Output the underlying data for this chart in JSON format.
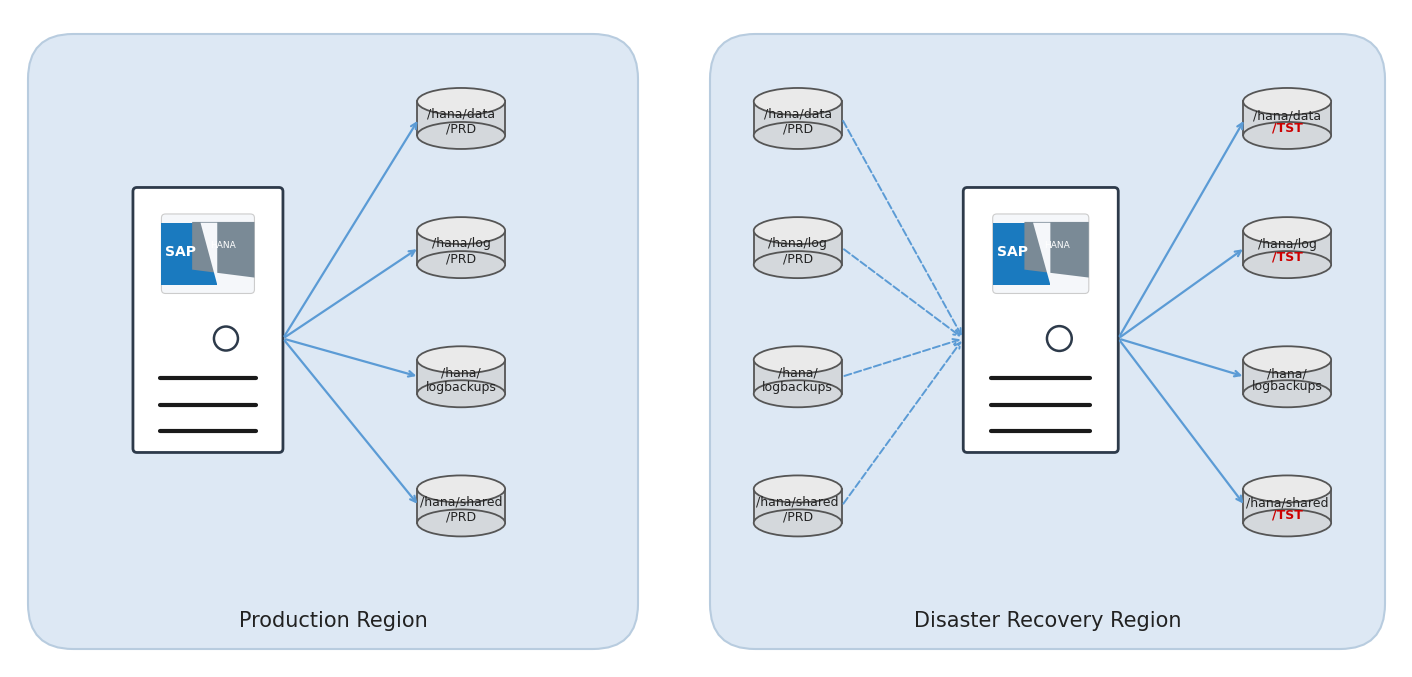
{
  "fig_bg": "#ffffff",
  "panel_bg": "#dde8f4",
  "panel_edge": "#b8ccdf",
  "server_bg": "#ffffff",
  "server_edge": "#2d3a4a",
  "logo_bg": "#f0f4f8",
  "logo_edge": "#cccccc",
  "sap_blue": "#1a7abf",
  "hana_gray": "#7a8a96",
  "cyl_face": "#d4d8dc",
  "cyl_top": "#eaeaea",
  "cyl_edge": "#555555",
  "arrow_color": "#5b9bd5",
  "text_dark": "#222222",
  "text_red": "#cc0000",
  "title_fs": 15,
  "label_fs": 9,
  "prod_title": "Production Region",
  "dr_title": "Disaster Recovery Region",
  "prod_labels": [
    "/hana/data\n/PRD",
    "/hana/log\n/PRD",
    "/hana/\nlogbackups",
    "/hana/shared\n/PRD"
  ],
  "dr_left_labels": [
    "/hana/data\n/PRD",
    "/hana/log\n/PRD",
    "/hana/\nlogbackups",
    "/hana/shared\n/PRD"
  ],
  "dr_right_l1": [
    "/hana/data",
    "/hana/log",
    "/hana/",
    "/hana/shared"
  ],
  "dr_right_l2": [
    "/TST",
    "/TST",
    "logbackups",
    "/TST"
  ],
  "dr_right_red": [
    true,
    true,
    false,
    true
  ]
}
